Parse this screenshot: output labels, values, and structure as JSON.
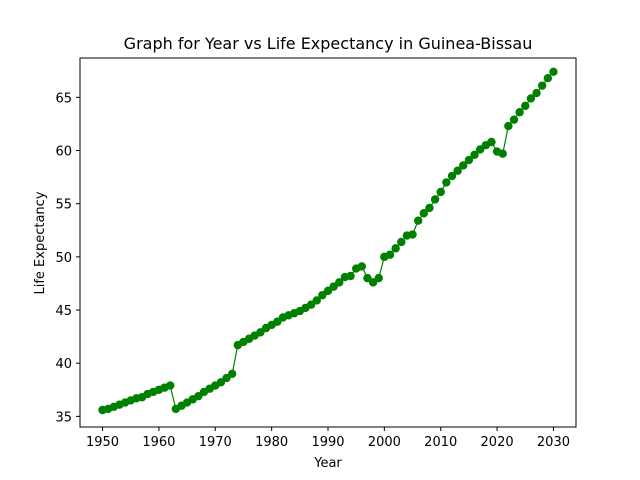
{
  "chart_data": {
    "type": "line",
    "title": "Graph for Year vs Life Expectancy in Guinea-Bissau",
    "xlabel": "Year",
    "ylabel": "Life Expectancy",
    "xlim": [
      1946,
      2034
    ],
    "ylim": [
      34.0,
      68.7
    ],
    "x_ticks": [
      1950,
      1960,
      1970,
      1980,
      1990,
      2000,
      2010,
      2020,
      2030
    ],
    "y_ticks": [
      35,
      40,
      45,
      50,
      55,
      60,
      65
    ],
    "grid": false,
    "color": "#008000",
    "marker": "circle",
    "series": [
      {
        "x": [
          1950,
          1951,
          1952,
          1953,
          1954,
          1955,
          1956,
          1957,
          1958,
          1959,
          1960,
          1961,
          1962,
          1963,
          1964,
          1965,
          1966,
          1967,
          1968,
          1969,
          1970,
          1971,
          1972,
          1973,
          1974,
          1975,
          1976,
          1977,
          1978,
          1979,
          1980,
          1981,
          1982,
          1983,
          1984,
          1985,
          1986,
          1987,
          1988,
          1989,
          1990,
          1991,
          1992,
          1993,
          1994,
          1995,
          1996,
          1997,
          1998,
          1999,
          2000,
          2001,
          2002,
          2003,
          2004,
          2005,
          2006,
          2007,
          2008,
          2009,
          2010,
          2011,
          2012,
          2013,
          2014,
          2015,
          2016,
          2017,
          2018,
          2019,
          2020,
          2021,
          2022,
          2023,
          2024,
          2025,
          2026,
          2027,
          2028,
          2029,
          2030
        ],
        "values": [
          35.6,
          35.7,
          35.9,
          36.1,
          36.3,
          36.5,
          36.7,
          36.8,
          37.1,
          37.3,
          37.5,
          37.7,
          37.9,
          35.7,
          36.0,
          36.3,
          36.6,
          36.9,
          37.3,
          37.6,
          37.9,
          38.2,
          38.6,
          39.0,
          41.7,
          42.0,
          42.3,
          42.6,
          42.9,
          43.3,
          43.6,
          43.9,
          44.3,
          44.5,
          44.7,
          44.9,
          45.2,
          45.5,
          45.9,
          46.4,
          46.8,
          47.2,
          47.6,
          48.1,
          48.2,
          48.9,
          49.1,
          48.0,
          47.6,
          48.0,
          50.0,
          50.2,
          50.8,
          51.4,
          52.0,
          52.1,
          53.4,
          54.1,
          54.6,
          55.4,
          56.1,
          57.0,
          57.6,
          58.1,
          58.6,
          59.1,
          59.6,
          60.1,
          60.5,
          60.8,
          59.9,
          59.7,
          62.3,
          62.9,
          63.6,
          64.2,
          64.9,
          65.4,
          66.1,
          66.8,
          67.4
        ]
      }
    ]
  }
}
